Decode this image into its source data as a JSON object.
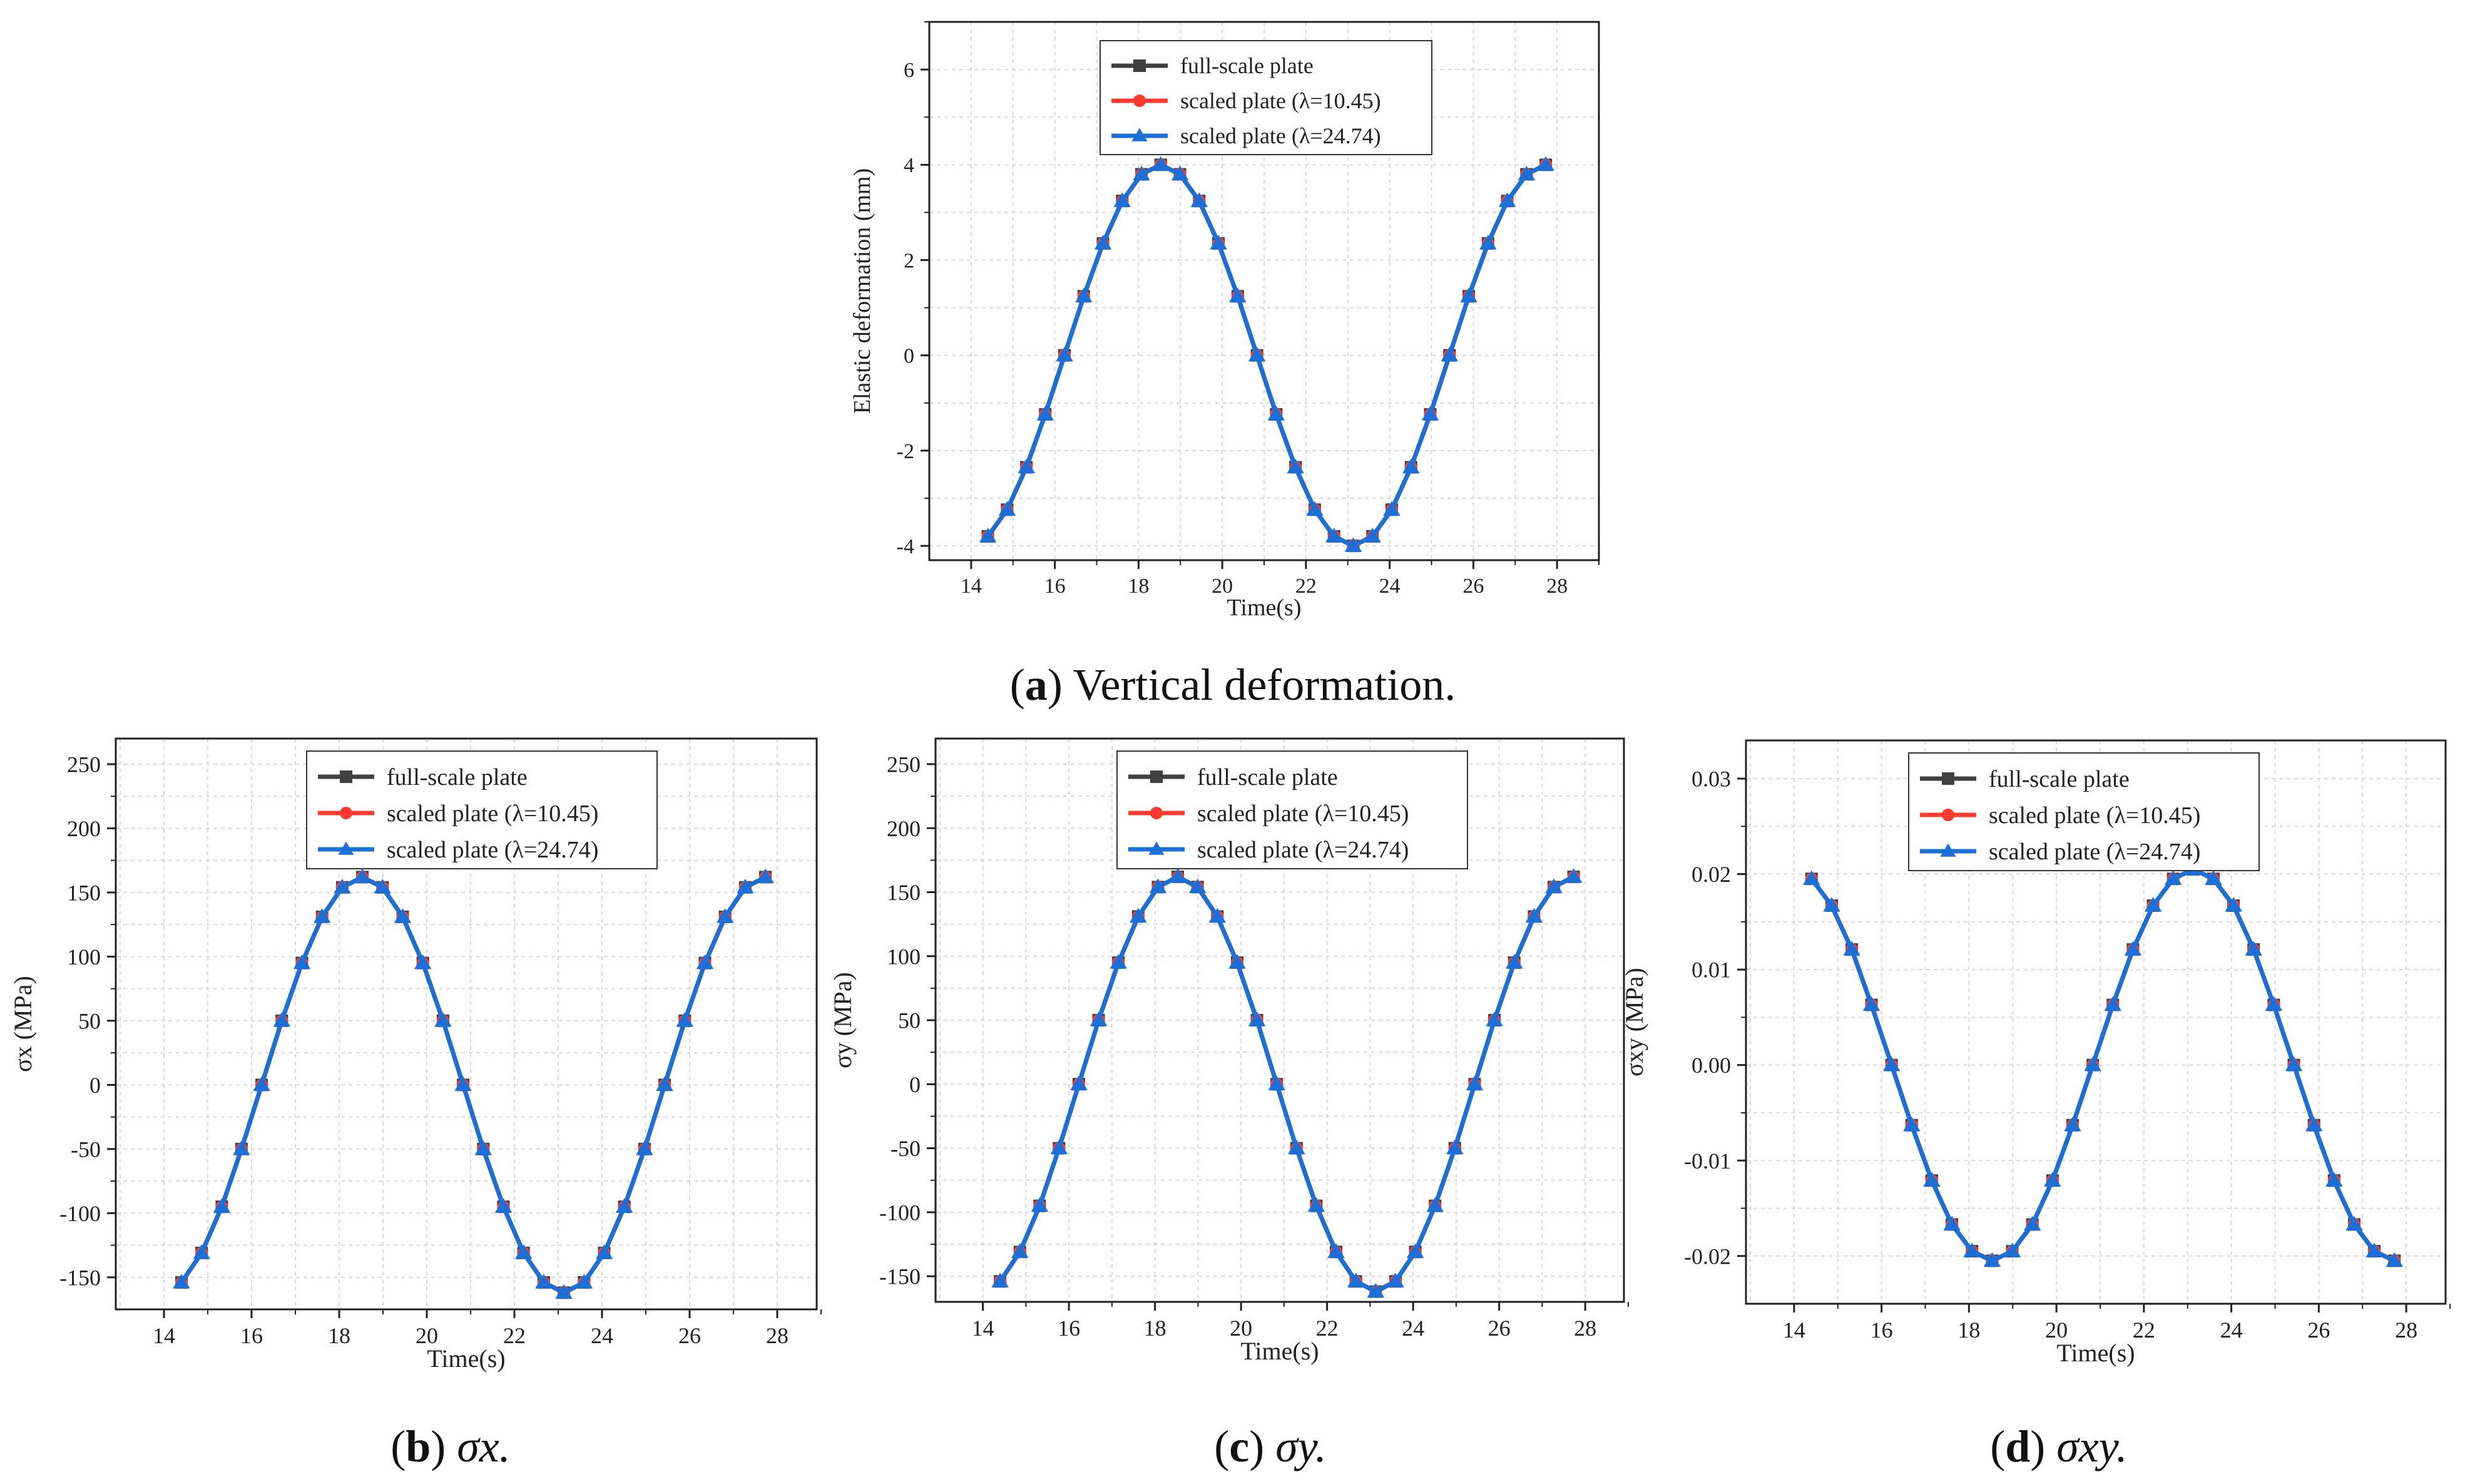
{
  "captions": {
    "a": {
      "letter": "a",
      "text": " Vertical deformation."
    },
    "b": {
      "letter": "b",
      "text": " σx."
    },
    "c": {
      "letter": "c",
      "text": " σy."
    },
    "d": {
      "letter": "d",
      "text": " σxy."
    }
  },
  "legend_labels": [
    "full-scale plate",
    "scaled plate (λ=10.45)",
    "scaled plate (λ=24.74)"
  ],
  "colors": {
    "full_scale": "#404040",
    "scaled_1045": "#ff3b30",
    "scaled_2474": "#1c6fd6",
    "grid": "#d9d9d9",
    "axis": "#222222"
  },
  "chart_data": [
    {
      "id": "a",
      "type": "line",
      "xlabel": "Time(s)",
      "ylabel": "Elastic deformation (mm)",
      "xlim": [
        13,
        29
      ],
      "ylim": [
        -4.3,
        7
      ],
      "xticks": [
        "14",
        "16",
        "18",
        "20",
        "22",
        "24",
        "26",
        "28"
      ],
      "yticks": [
        "-4",
        "-2",
        "0",
        "2",
        "4",
        "6"
      ],
      "grid": true,
      "legend_position": "top-center",
      "x": [
        14.4,
        14.86,
        15.32,
        15.77,
        16.23,
        16.69,
        17.15,
        17.61,
        18.07,
        18.53,
        18.99,
        19.45,
        19.91,
        20.37,
        20.83,
        21.29,
        21.75,
        22.21,
        22.67,
        23.13,
        23.59,
        24.05,
        24.51,
        24.97,
        25.43,
        25.89,
        26.35,
        26.81,
        27.27,
        27.73
      ],
      "series": [
        {
          "name": "full-scale plate",
          "marker": "square",
          "values": [
            -3.8,
            -3.24,
            -2.35,
            -1.24,
            0.0,
            1.24,
            2.35,
            3.24,
            3.8,
            4.0,
            3.8,
            3.24,
            2.35,
            1.24,
            0.0,
            -1.24,
            -2.35,
            -3.24,
            -3.8,
            -4.0,
            -3.8,
            -3.24,
            -2.35,
            -1.24,
            0.0,
            1.24,
            2.35,
            3.24,
            3.8,
            4.0
          ]
        },
        {
          "name": "scaled plate (λ=10.45)",
          "marker": "circle",
          "values": [
            -3.8,
            -3.24,
            -2.35,
            -1.24,
            0.0,
            1.24,
            2.35,
            3.24,
            3.8,
            4.0,
            3.8,
            3.24,
            2.35,
            1.24,
            0.0,
            -1.24,
            -2.35,
            -3.24,
            -3.8,
            -4.0,
            -3.8,
            -3.24,
            -2.35,
            -1.24,
            0.0,
            1.24,
            2.35,
            3.24,
            3.8,
            4.0
          ]
        },
        {
          "name": "scaled plate (λ=24.74)",
          "marker": "triangle",
          "values": [
            -3.8,
            -3.24,
            -2.35,
            -1.24,
            0.0,
            1.24,
            2.35,
            3.24,
            3.8,
            4.0,
            3.8,
            3.24,
            2.35,
            1.24,
            0.0,
            -1.24,
            -2.35,
            -3.24,
            -3.8,
            -4.0,
            -3.8,
            -3.24,
            -2.35,
            -1.24,
            0.0,
            1.24,
            2.35,
            3.24,
            3.8,
            4.0
          ]
        }
      ]
    },
    {
      "id": "b",
      "type": "line",
      "xlabel": "Time(s)",
      "ylabel": "σx (MPa)",
      "xlim": [
        12.9,
        28.9
      ],
      "ylim": [
        -175,
        270
      ],
      "xticks": [
        "14",
        "16",
        "18",
        "20",
        "22",
        "24",
        "26",
        "28"
      ],
      "yticks": [
        "-150",
        "-100",
        "-50",
        "0",
        "50",
        "100",
        "150",
        "200",
        "250"
      ],
      "grid": true,
      "legend_position": "top-center",
      "x": [
        14.4,
        14.86,
        15.32,
        15.77,
        16.23,
        16.69,
        17.15,
        17.61,
        18.07,
        18.53,
        18.99,
        19.45,
        19.91,
        20.37,
        20.83,
        21.29,
        21.75,
        22.21,
        22.67,
        23.13,
        23.59,
        24.05,
        24.51,
        24.97,
        25.43,
        25.89,
        26.35,
        26.81,
        27.27,
        27.73
      ],
      "series": [
        {
          "name": "full-scale plate",
          "marker": "square",
          "values": [
            -154,
            -131,
            -95,
            -50,
            0,
            50,
            95,
            131,
            154,
            162,
            154,
            131,
            95,
            50,
            0,
            -50,
            -95,
            -131,
            -154,
            -162,
            -154,
            -131,
            -95,
            -50,
            0,
            50,
            95,
            131,
            154,
            162
          ]
        },
        {
          "name": "scaled plate (λ=10.45)",
          "marker": "circle",
          "values": [
            -154,
            -131,
            -95,
            -50,
            0,
            50,
            95,
            131,
            154,
            162,
            154,
            131,
            95,
            50,
            0,
            -50,
            -95,
            -131,
            -154,
            -162,
            -154,
            -131,
            -95,
            -50,
            0,
            50,
            95,
            131,
            154,
            162
          ]
        },
        {
          "name": "scaled plate (λ=24.74)",
          "marker": "triangle",
          "values": [
            -154,
            -131,
            -95,
            -50,
            0,
            50,
            95,
            131,
            154,
            162,
            154,
            131,
            95,
            50,
            0,
            -50,
            -95,
            -131,
            -154,
            -162,
            -154,
            -131,
            -95,
            -50,
            0,
            50,
            95,
            131,
            154,
            162
          ]
        }
      ]
    },
    {
      "id": "c",
      "type": "line",
      "xlabel": "Time(s)",
      "ylabel": "σy (MPa)",
      "xlim": [
        12.9,
        28.9
      ],
      "ylim": [
        -170,
        270
      ],
      "xticks": [
        "14",
        "16",
        "18",
        "20",
        "22",
        "24",
        "26",
        "28"
      ],
      "yticks": [
        "-150",
        "-100",
        "-50",
        "0",
        "50",
        "100",
        "150",
        "200",
        "250"
      ],
      "grid": true,
      "legend_position": "top-center",
      "x": [
        14.4,
        14.86,
        15.32,
        15.77,
        16.23,
        16.69,
        17.15,
        17.61,
        18.07,
        18.53,
        18.99,
        19.45,
        19.91,
        20.37,
        20.83,
        21.29,
        21.75,
        22.21,
        22.67,
        23.13,
        23.59,
        24.05,
        24.51,
        24.97,
        25.43,
        25.89,
        26.35,
        26.81,
        27.27,
        27.73
      ],
      "series": [
        {
          "name": "full-scale plate",
          "marker": "square",
          "values": [
            -154,
            -131,
            -95,
            -50,
            0,
            50,
            95,
            131,
            154,
            162,
            154,
            131,
            95,
            50,
            0,
            -50,
            -95,
            -131,
            -154,
            -162,
            -154,
            -131,
            -95,
            -50,
            0,
            50,
            95,
            131,
            154,
            162
          ]
        },
        {
          "name": "scaled plate (λ=10.45)",
          "marker": "circle",
          "values": [
            -154,
            -131,
            -95,
            -50,
            0,
            50,
            95,
            131,
            154,
            162,
            154,
            131,
            95,
            50,
            0,
            -50,
            -95,
            -131,
            -154,
            -162,
            -154,
            -131,
            -95,
            -50,
            0,
            50,
            95,
            131,
            154,
            162
          ]
        },
        {
          "name": "scaled plate (λ=24.74)",
          "marker": "triangle",
          "values": [
            -154,
            -131,
            -95,
            -50,
            0,
            50,
            95,
            131,
            154,
            162,
            154,
            131,
            95,
            50,
            0,
            -50,
            -95,
            -131,
            -154,
            -162,
            -154,
            -131,
            -95,
            -50,
            0,
            50,
            95,
            131,
            154,
            162
          ]
        }
      ]
    },
    {
      "id": "d",
      "type": "line",
      "xlabel": "Time(s)",
      "ylabel": "σxy (MPa)",
      "xlim": [
        12.9,
        28.9
      ],
      "ylim": [
        -0.025,
        0.034
      ],
      "xticks": [
        "14",
        "16",
        "18",
        "20",
        "22",
        "24",
        "26",
        "28"
      ],
      "yticks": [
        "-0.02",
        "-0.01",
        "0.00",
        "0.01",
        "0.02",
        "0.03"
      ],
      "grid": true,
      "legend_position": "top-center",
      "x": [
        14.4,
        14.86,
        15.32,
        15.77,
        16.23,
        16.69,
        17.15,
        17.61,
        18.07,
        18.53,
        18.99,
        19.45,
        19.91,
        20.37,
        20.83,
        21.29,
        21.75,
        22.21,
        22.67,
        23.13,
        23.59,
        24.05,
        24.51,
        24.97,
        25.43,
        25.89,
        26.35,
        26.81,
        27.27,
        27.73
      ],
      "series": [
        {
          "name": "full-scale plate",
          "marker": "square",
          "values": [
            0.0195,
            0.0167,
            0.0121,
            0.0063,
            0.0,
            -0.0063,
            -0.0121,
            -0.0167,
            -0.0195,
            -0.0205,
            -0.0195,
            -0.0167,
            -0.0121,
            -0.0063,
            0.0,
            0.0063,
            0.0121,
            0.0167,
            0.0195,
            0.0205,
            0.0195,
            0.0167,
            0.0121,
            0.0063,
            0.0,
            -0.0063,
            -0.0121,
            -0.0167,
            -0.0195,
            -0.0205
          ]
        },
        {
          "name": "scaled plate (λ=10.45)",
          "marker": "circle",
          "values": [
            0.0195,
            0.0167,
            0.0121,
            0.0063,
            0.0,
            -0.0063,
            -0.0121,
            -0.0167,
            -0.0195,
            -0.0205,
            -0.0195,
            -0.0167,
            -0.0121,
            -0.0063,
            0.0,
            0.0063,
            0.0121,
            0.0167,
            0.0195,
            0.0205,
            0.0195,
            0.0167,
            0.0121,
            0.0063,
            0.0,
            -0.0063,
            -0.0121,
            -0.0167,
            -0.0195,
            -0.0205
          ]
        },
        {
          "name": "scaled plate (λ=24.74)",
          "marker": "triangle",
          "values": [
            0.0195,
            0.0167,
            0.0121,
            0.0063,
            0.0,
            -0.0063,
            -0.0121,
            -0.0167,
            -0.0195,
            -0.0205,
            -0.0195,
            -0.0167,
            -0.0121,
            -0.0063,
            0.0,
            0.0063,
            0.0121,
            0.0167,
            0.0195,
            0.0205,
            0.0195,
            0.0167,
            0.0121,
            0.0063,
            0.0,
            -0.0063,
            -0.0121,
            -0.0167,
            -0.0195,
            -0.0205
          ]
        }
      ]
    }
  ]
}
